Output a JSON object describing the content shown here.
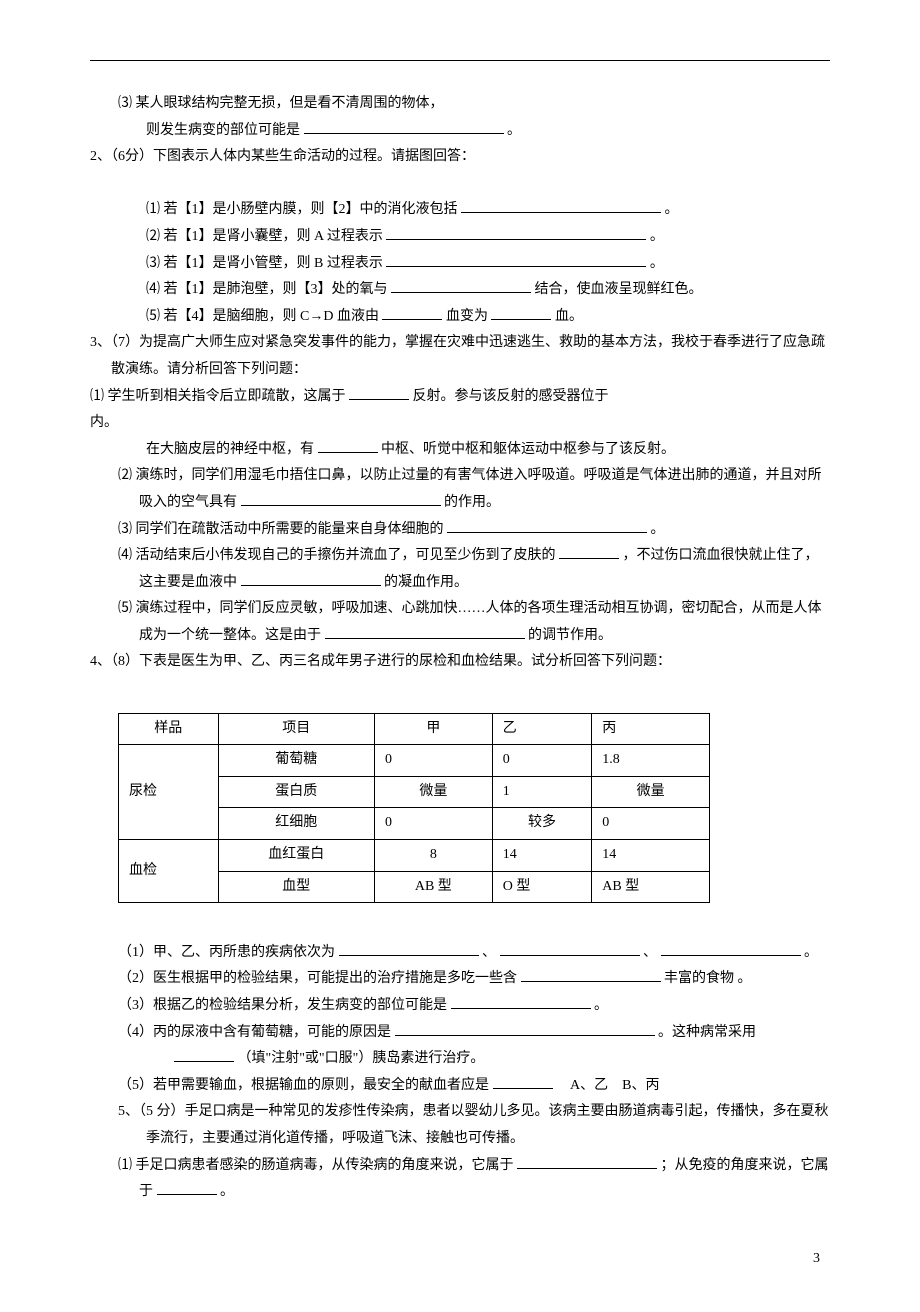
{
  "q1_3a": "⑶ 某人眼球结构完整无损，但是看不清周围的物体，",
  "q1_3b": "则发生病变的部位可能是",
  "q1_3c": "。",
  "q2_head": "2、（6分）下图表示人体内某些生命活动的过程。请据图回答：",
  "q2_1a": "⑴ 若【1】是小肠壁内膜，则【2】中的消化液包括",
  "q2_1b": "。",
  "q2_2a": "⑵ 若【1】是肾小囊壁，则 A 过程表示",
  "q2_2b": "。",
  "q2_3a": "⑶ 若【1】是肾小管壁，则 B 过程表示",
  "q2_3b": "。",
  "q2_4a": "⑷ 若【1】是肺泡壁，则【3】处的氧与",
  "q2_4b": "结合，使血液呈现鲜红色。",
  "q2_5a": "⑸ 若【4】是脑细胞，则 C→D 血液由",
  "q2_5b": "血变为",
  "q2_5c": "血。",
  "q3_head": "3、（7）为提高广大师生应对紧急突发事件的能力，掌握在灾难中迅速逃生、救助的基本方法，我校于春季进行了应急疏散演练。请分析回答下列问题：",
  "q3_1a": "⑴ 学生听到相关指令后立即疏散，这属于",
  "q3_1b": "反射。参与该反射的感受器位于",
  "q3_1c": "内。",
  "q3_1d": "在大脑皮层的神经中枢，有",
  "q3_1e": "中枢、听觉中枢和躯体运动中枢参与了该反射。",
  "q3_2a": "⑵ 演练时，同学们用湿毛巾捂住口鼻，以防止过量的有害气体进入呼吸道。呼吸道是气体进出肺的通道，并且对所吸入的空气具有",
  "q3_2b": "的作用。",
  "q3_3a": "⑶ 同学们在疏散活动中所需要的能量来自身体细胞的",
  "q3_3b": "。",
  "q3_4a": "⑷ 活动结束后小伟发现自己的手擦伤并流血了，可见至少伤到了皮肤的",
  "q3_4b": "，不过伤口流血很快就止住了，这主要是血液中",
  "q3_4c": "的凝血作用。",
  "q3_5a": "⑸ 演练过程中，同学们反应灵敏，呼吸加速、心跳加快……人体的各项生理活动相互协调，密切配合，从而是人体成为一个统一整体。这是由于",
  "q3_5b": "的调节作用。",
  "q4_head": "4、（8）下表是医生为甲、乙、丙三名成年男子进行的尿检和血检结果。试分析回答下列问题：",
  "table": {
    "columns": [
      "样品",
      "项目",
      "甲",
      "乙",
      "丙"
    ],
    "rows": [
      [
        "尿检",
        "葡萄糖",
        "0",
        "0",
        "1.8"
      ],
      [
        "",
        "蛋白质",
        "微量",
        "1",
        "微量"
      ],
      [
        "",
        "红细胞",
        "0",
        "较多",
        "0"
      ],
      [
        "血检",
        "血红蛋白",
        "8",
        "14",
        "14"
      ],
      [
        "",
        "血型",
        "AB 型",
        "O 型",
        "AB 型"
      ]
    ],
    "col_align": [
      "center",
      "center",
      "center",
      "left",
      "left"
    ]
  },
  "q4_1a": "（1）甲、乙、丙所患的疾病依次为",
  "q4_1b": "、",
  "q4_1c": "、",
  "q4_1d": "。",
  "q4_2a": "（2）医生根据甲的检验结果，可能提出的治疗措施是多吃一些含",
  "q4_2b": "丰富的食物 。",
  "q4_3a": "（3）根据乙的检验结果分析，发生病变的部位可能是",
  "q4_3b": "。",
  "q4_4a": "（4）丙的尿液中含有葡萄糖，可能的原因是",
  "q4_4b": "。这种病常采用",
  "q4_4c": "（填\"注射\"或\"口服\"）胰岛素进行治疗。",
  "q4_5a": "（5）若甲需要输血，根据输血的原则，最安全的献血者应是",
  "q4_5b": "　A、乙　B、丙",
  "q5_head": "5、（5 分）手足口病是一种常见的发疹性传染病，患者以婴幼儿多见。该病主要由肠道病毒引起，传播快，多在夏秋季流行，主要通过消化道传播，呼吸道飞沫、接触也可传播。",
  "q5_1a": "⑴ 手足口病患者感染的肠道病毒，从传染病的角度来说，它属于",
  "q5_1b": "；从免疫的角度来说，它属于",
  "q5_1c": "。",
  "page_num": "3"
}
